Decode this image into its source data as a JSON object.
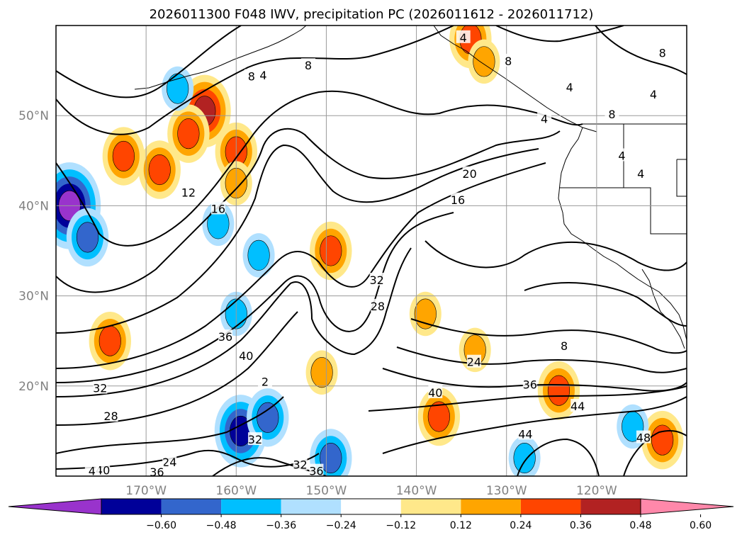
{
  "chart_data": {
    "type": "contour-map",
    "title": "2026011300 F048 IWV, precipitation PC (2026011612 - 2026011712)",
    "lon_range": [
      -180,
      -110
    ],
    "lat_range": [
      10,
      60
    ],
    "lat_ticks": [
      {
        "label": "50°N",
        "value": 50
      },
      {
        "label": "40°N",
        "value": 40
      },
      {
        "label": "30°N",
        "value": 30
      },
      {
        "label": "20°N",
        "value": 20
      }
    ],
    "lon_ticks": [
      {
        "label": "170°W",
        "value": -170
      },
      {
        "label": "160°W",
        "value": -160
      },
      {
        "label": "150°W",
        "value": -150
      },
      {
        "label": "140°W",
        "value": -140
      },
      {
        "label": "130°W",
        "value": -130
      },
      {
        "label": "120°W",
        "value": -120
      }
    ],
    "grid": true,
    "iwv_contour_levels": [
      4,
      8,
      12,
      16,
      20,
      24,
      28,
      32,
      36,
      40,
      44,
      48
    ],
    "contour_labels": [
      {
        "text": "4",
        "lon": -157,
        "lat": 54.4
      },
      {
        "text": "4",
        "lon": -134.8,
        "lat": 58.6
      },
      {
        "text": "8",
        "lon": -158.3,
        "lat": 54.3
      },
      {
        "text": "8",
        "lon": -152,
        "lat": 55.5
      },
      {
        "text": "8",
        "lon": -129.8,
        "lat": 56
      },
      {
        "text": "8",
        "lon": -123.6,
        "lat": 24.4
      },
      {
        "text": "8",
        "lon": -118.3,
        "lat": 50.1
      },
      {
        "text": "8",
        "lon": -112.7,
        "lat": 56.9
      },
      {
        "text": "4",
        "lon": -123,
        "lat": 53.1
      },
      {
        "text": "4",
        "lon": -125.8,
        "lat": 49.6
      },
      {
        "text": "4",
        "lon": -113.7,
        "lat": 52.3
      },
      {
        "text": "4",
        "lon": -115.1,
        "lat": 43.5
      },
      {
        "text": "4",
        "lon": -117.2,
        "lat": 45.5
      },
      {
        "text": "12",
        "lon": -165.3,
        "lat": 41.4
      },
      {
        "text": "16",
        "lon": -162,
        "lat": 39.6
      },
      {
        "text": "16",
        "lon": -135.4,
        "lat": 40.6
      },
      {
        "text": "20",
        "lon": -134.1,
        "lat": 43.5
      },
      {
        "text": "24",
        "lon": -133.6,
        "lat": 22.6
      },
      {
        "text": "24",
        "lon": -167.4,
        "lat": 11.5
      },
      {
        "text": "28",
        "lon": -144.3,
        "lat": 28.8
      },
      {
        "text": "28",
        "lon": -173.9,
        "lat": 16.6
      },
      {
        "text": "32",
        "lon": -144.4,
        "lat": 31.7
      },
      {
        "text": "32",
        "lon": -175.1,
        "lat": 19.7
      },
      {
        "text": "32",
        "lon": -157.9,
        "lat": 14
      },
      {
        "text": "32",
        "lon": -152.9,
        "lat": 11.2
      },
      {
        "text": "36",
        "lon": -161.2,
        "lat": 25.4
      },
      {
        "text": "36",
        "lon": -127.4,
        "lat": 20.1
      },
      {
        "text": "36",
        "lon": -168.8,
        "lat": 10.4
      },
      {
        "text": "36",
        "lon": -151.1,
        "lat": 10.5
      },
      {
        "text": "40",
        "lon": -158.9,
        "lat": 23.3
      },
      {
        "text": "40",
        "lon": -137.9,
        "lat": 19.2
      },
      {
        "text": "40",
        "lon": -174.8,
        "lat": 10.6
      },
      {
        "text": "44",
        "lon": -122.1,
        "lat": 17.7
      },
      {
        "text": "44",
        "lon": -127.9,
        "lat": 14.6
      },
      {
        "text": "48",
        "lon": -114.8,
        "lat": 14.2
      },
      {
        "text": "2",
        "lon": -156.8,
        "lat": 20.4
      },
      {
        "text": "4",
        "lon": -176,
        "lat": 10.5
      }
    ],
    "colorbar": {
      "colors": [
        "#9933cc",
        "#000099",
        "#3366cc",
        "#00bfff",
        "#b0e0ff",
        "#ffffff",
        "#ffe88a",
        "#ffa500",
        "#ff4500",
        "#b22222",
        "#ff88aa"
      ],
      "tick_labels": [
        "−0.60",
        "−0.48",
        "−0.36",
        "−0.24",
        "−0.12",
        "0.12",
        "0.24",
        "0.36",
        "0.48",
        "0.60"
      ],
      "bounds": [
        -0.6,
        -0.48,
        -0.36,
        -0.24,
        -0.12,
        0.12,
        0.24,
        0.36,
        0.48,
        0.6
      ],
      "extend": "both"
    },
    "precip_pc_areas": [
      {
        "sign": "positive",
        "lon": -163.5,
        "lat": 50.5,
        "peak": 0.5
      },
      {
        "sign": "positive",
        "lon": -165.3,
        "lat": 48,
        "peak": 0.45
      },
      {
        "sign": "positive",
        "lon": -160,
        "lat": 46,
        "peak": 0.36
      },
      {
        "sign": "positive",
        "lon": -160,
        "lat": 42.5,
        "peak": 0.3
      },
      {
        "sign": "positive",
        "lon": -172.5,
        "lat": 45.5,
        "peak": 0.4
      },
      {
        "sign": "positive",
        "lon": -168.5,
        "lat": 44,
        "peak": 0.4
      },
      {
        "sign": "positive",
        "lon": -149.5,
        "lat": 35,
        "peak": 0.4
      },
      {
        "sign": "positive",
        "lon": -174,
        "lat": 25,
        "peak": 0.36
      },
      {
        "sign": "positive",
        "lon": -137.5,
        "lat": 16.6,
        "peak": 0.36
      },
      {
        "sign": "positive",
        "lon": -139,
        "lat": 28,
        "peak": 0.3
      },
      {
        "sign": "positive",
        "lon": -150.5,
        "lat": 21.5,
        "peak": 0.3
      },
      {
        "sign": "positive",
        "lon": -133.5,
        "lat": 24,
        "peak": 0.3
      },
      {
        "sign": "positive",
        "lon": -134,
        "lat": 58.5,
        "peak": 0.4
      },
      {
        "sign": "positive",
        "lon": -132.5,
        "lat": 56,
        "peak": 0.3
      },
      {
        "sign": "positive",
        "lon": -124.2,
        "lat": 19.5,
        "peak": 0.36
      },
      {
        "sign": "positive",
        "lon": -112.7,
        "lat": 14,
        "peak": 0.36
      },
      {
        "sign": "negative",
        "lon": -178.5,
        "lat": 40,
        "peak": -0.6
      },
      {
        "sign": "negative",
        "lon": -176.5,
        "lat": 36.5,
        "peak": -0.36
      },
      {
        "sign": "negative",
        "lon": -166.5,
        "lat": 53,
        "peak": -0.24
      },
      {
        "sign": "negative",
        "lon": -162,
        "lat": 38,
        "peak": -0.24
      },
      {
        "sign": "negative",
        "lon": -159.5,
        "lat": 15,
        "peak": -0.48
      },
      {
        "sign": "negative",
        "lon": -156.5,
        "lat": 16.5,
        "peak": -0.36
      },
      {
        "sign": "negative",
        "lon": -149.5,
        "lat": 12,
        "peak": -0.36
      },
      {
        "sign": "negative",
        "lon": -128,
        "lat": 12,
        "peak": -0.24
      },
      {
        "sign": "negative",
        "lon": -116,
        "lat": 15.5,
        "peak": -0.24
      },
      {
        "sign": "negative",
        "lon": -157.5,
        "lat": 34.5,
        "peak": -0.24
      },
      {
        "sign": "negative",
        "lon": -160,
        "lat": 28,
        "peak": -0.24
      }
    ]
  }
}
